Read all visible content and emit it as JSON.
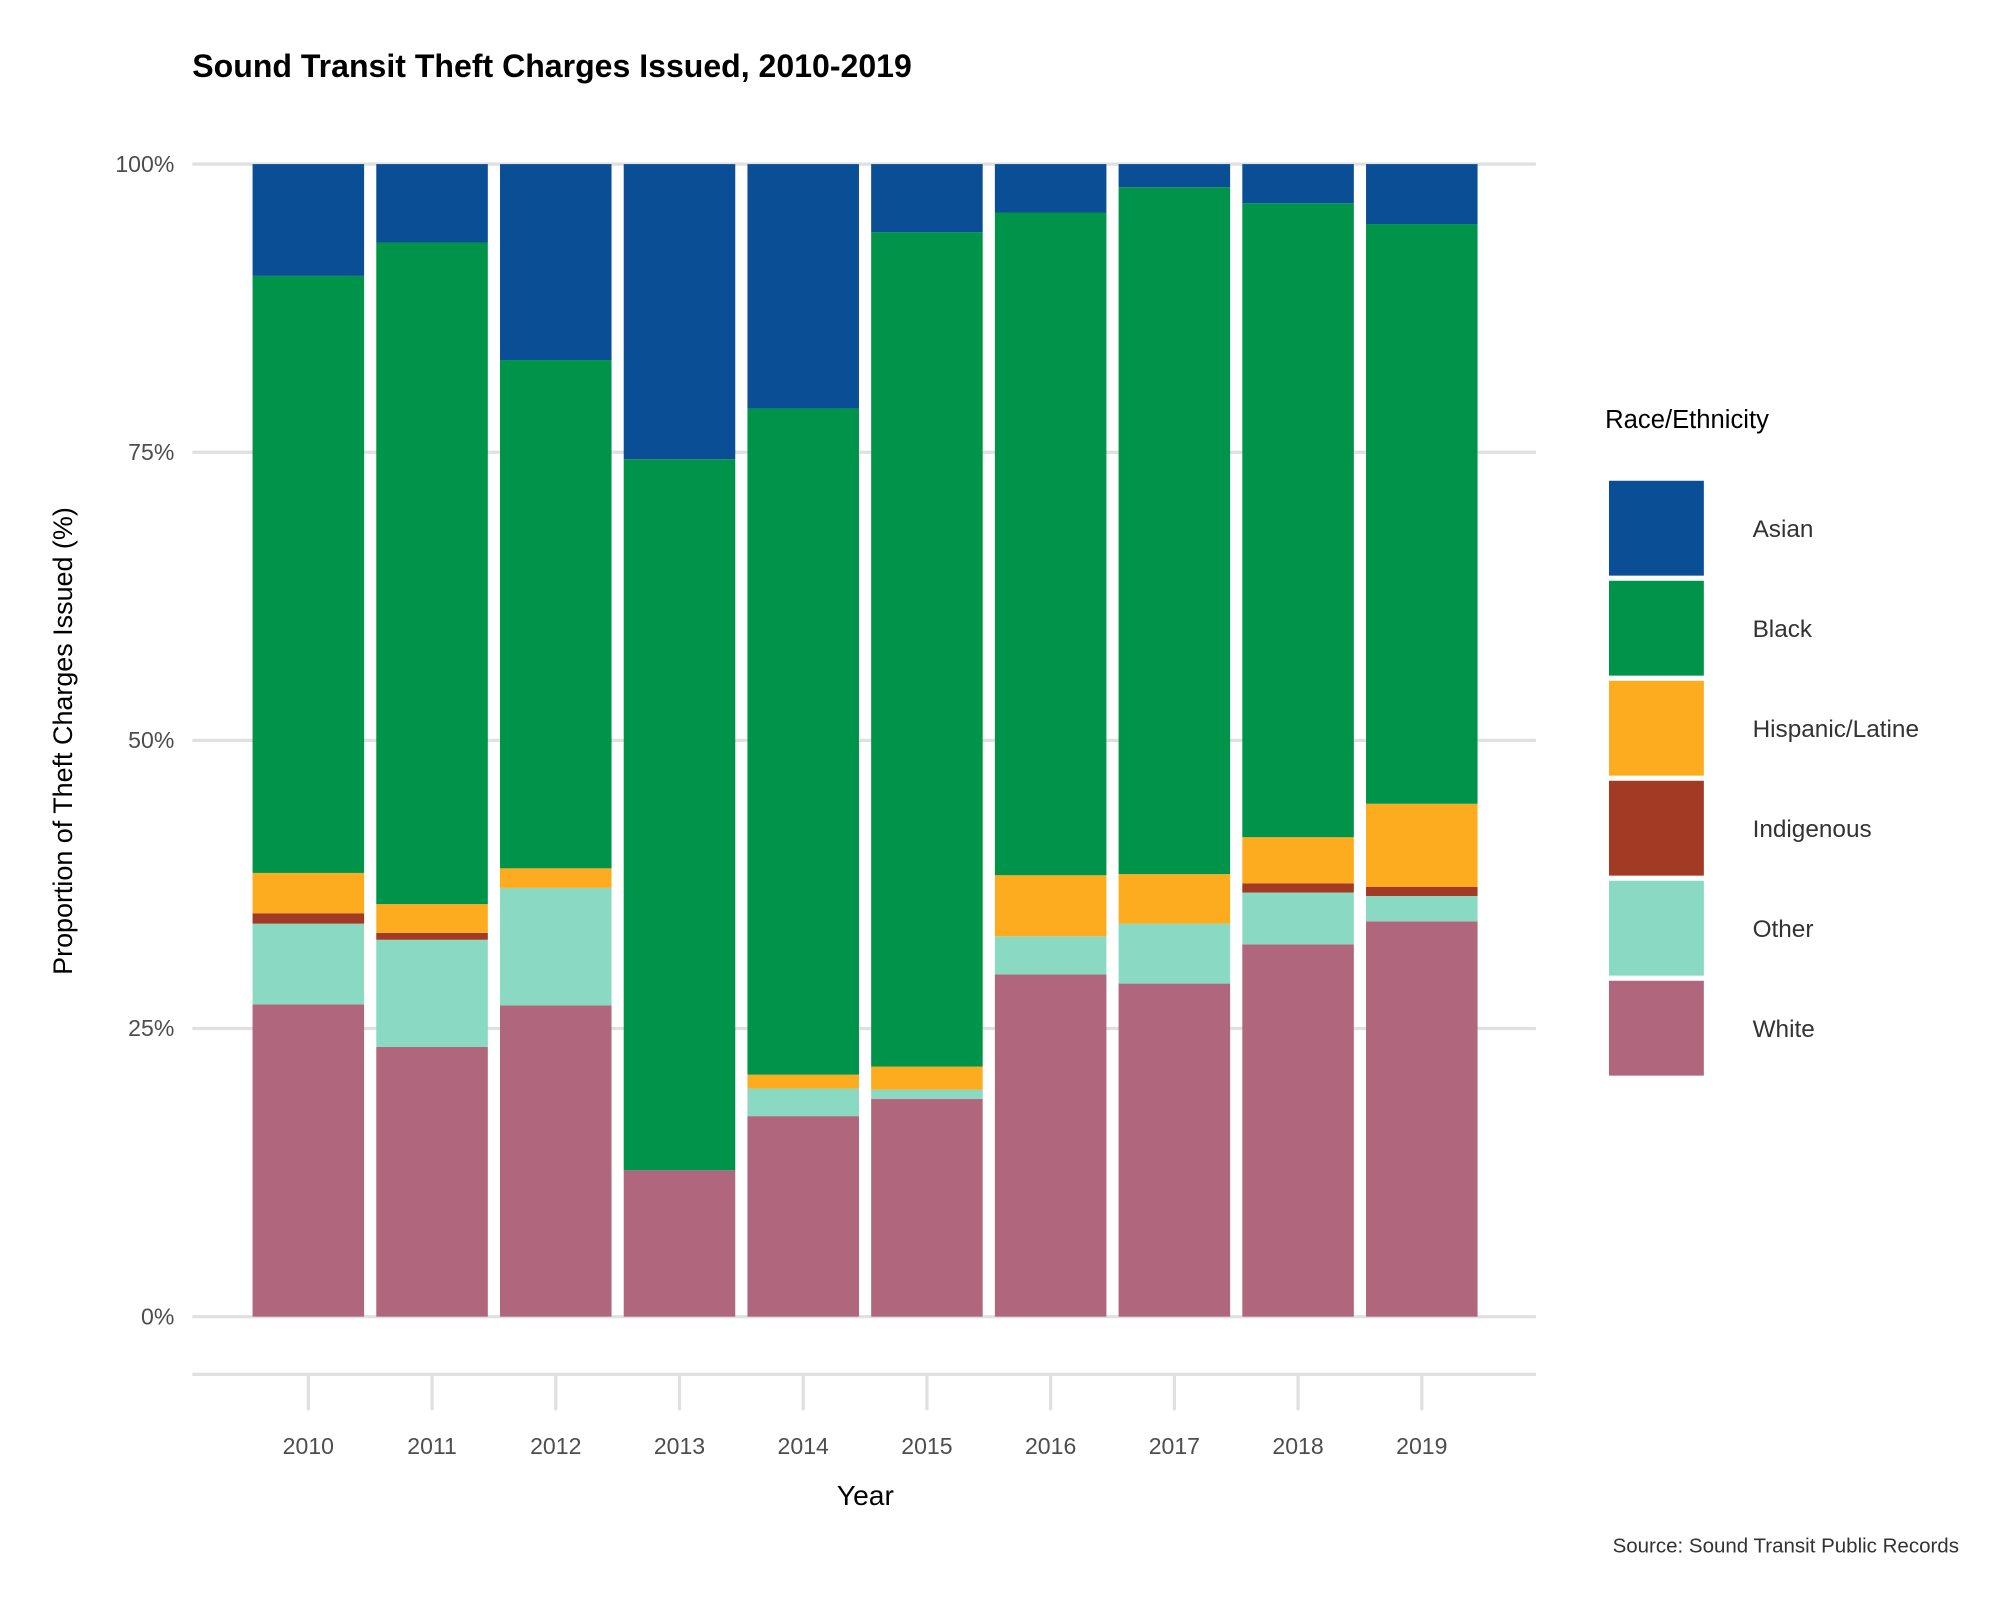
{
  "chart_data": {
    "type": "bar",
    "stacked": true,
    "title": "Sound Transit Theft Charges Issued, 2010-2019",
    "xlabel": "Year",
    "ylabel": "Proportion of Theft Charges Issued (%)",
    "caption": "Source: Sound Transit Public Records",
    "ylim": [
      0,
      100
    ],
    "yticks": [
      "0%",
      "25%",
      "50%",
      "75%",
      "100%"
    ],
    "ytick_values": [
      0,
      25,
      50,
      75,
      100
    ],
    "grid": true,
    "legend": {
      "title": "Race/Ethnicity",
      "placement": "right"
    },
    "categories": [
      "2010",
      "2011",
      "2012",
      "2013",
      "2014",
      "2015",
      "2016",
      "2017",
      "2018",
      "2019"
    ],
    "series": [
      {
        "name": "White",
        "color": "#b0677d",
        "values": [
          27.1,
          23.4,
          27.0,
          12.7,
          17.4,
          18.9,
          29.7,
          28.9,
          32.3,
          34.3
        ]
      },
      {
        "name": "Other",
        "color": "#8adac3",
        "values": [
          7.0,
          9.3,
          10.2,
          0,
          2.4,
          0.8,
          3.3,
          5.2,
          4.5,
          2.2
        ]
      },
      {
        "name": "Indigenous",
        "color": "#a33a23",
        "values": [
          0.9,
          0.6,
          0,
          0,
          0,
          0,
          0,
          0,
          0.8,
          0.8
        ]
      },
      {
        "name": "Hispanic/Latine",
        "color": "#fdab1f",
        "values": [
          3.5,
          2.5,
          1.7,
          0,
          1.2,
          2.0,
          5.3,
          4.3,
          4.0,
          7.2
        ]
      },
      {
        "name": "Black",
        "color": "#00944b",
        "values": [
          51.8,
          57.4,
          44.1,
          61.7,
          57.8,
          72.4,
          57.5,
          59.6,
          55.0,
          50.3
        ]
      },
      {
        "name": "Asian",
        "color": "#0a4f96",
        "values": [
          9.7,
          6.8,
          17.0,
          25.6,
          21.2,
          5.9,
          4.2,
          2.0,
          3.4,
          5.2
        ]
      }
    ],
    "legend_order": [
      "Asian",
      "Black",
      "Hispanic/Latine",
      "Indigenous",
      "Other",
      "White"
    ]
  }
}
